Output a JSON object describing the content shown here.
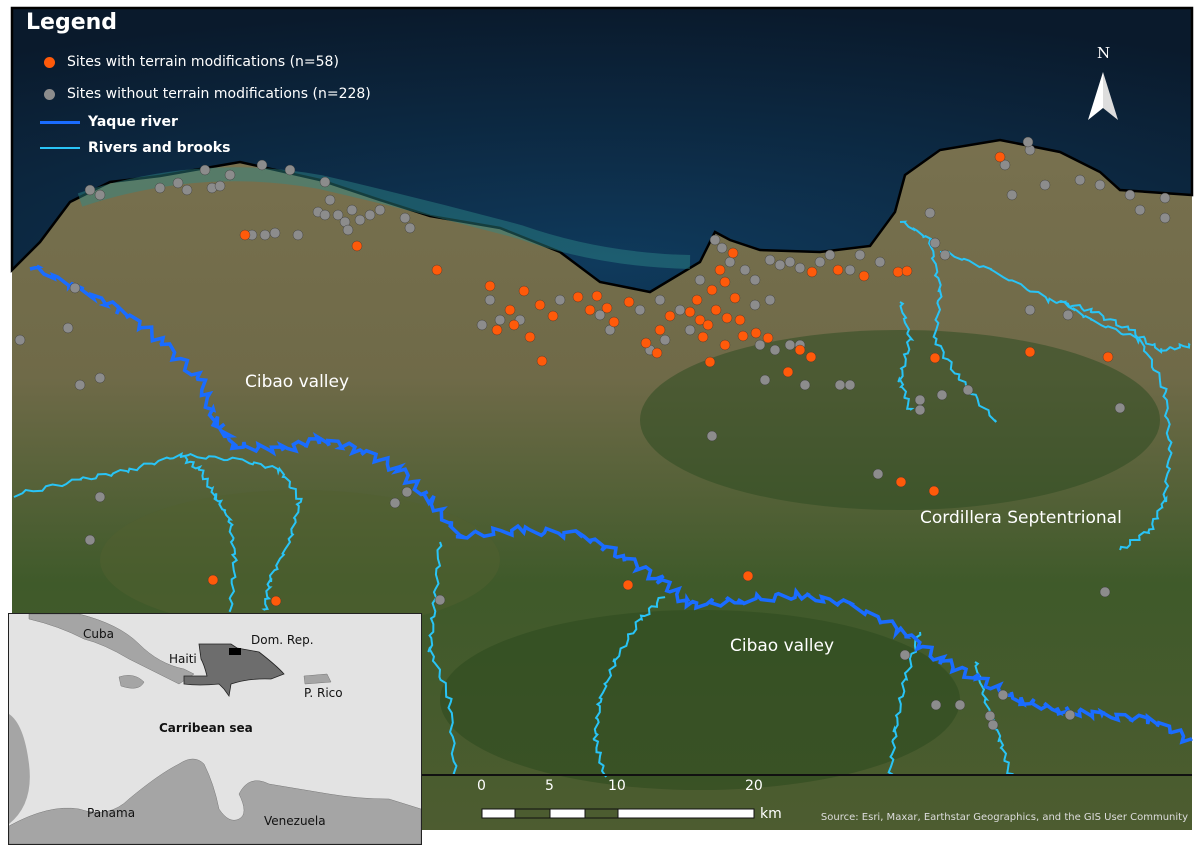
{
  "legend": {
    "title": "Legend",
    "items": [
      {
        "label": "Sites with terrain modifications (n=58)",
        "symbol": "circle",
        "color": "#ff5a0a"
      },
      {
        "label": "Sites without terrain modifications (n=228)",
        "symbol": "circle",
        "color": "#8c8c8c"
      },
      {
        "label": "Yaque river",
        "symbol": "line",
        "color": "#1a6cff"
      },
      {
        "label": "Rivers and brooks",
        "symbol": "line",
        "color": "#29c4f6"
      }
    ]
  },
  "map_labels": {
    "cibao_west": "Cibao valley",
    "cibao_east": "Cibao valley",
    "cordillera": "Cordillera Septentrional"
  },
  "north_arrow": "N",
  "scale_bar": {
    "ticks": [
      "0",
      "5",
      "10",
      "20"
    ],
    "unit": "km"
  },
  "source": "Source: Esri, Maxar, Earthstar Geographics, and the GIS User Community",
  "inset": {
    "labels": {
      "cuba": "Cuba",
      "dom_rep": "Dom. Rep.",
      "haiti": "Haiti",
      "puerto_rico": "P. Rico",
      "sea": "Carribean sea",
      "panama": "Panama",
      "venezuela": "Venezuela"
    }
  },
  "colors": {
    "ocean": "#0c1e33",
    "land": "#6b6a45",
    "coast": "#000000"
  }
}
